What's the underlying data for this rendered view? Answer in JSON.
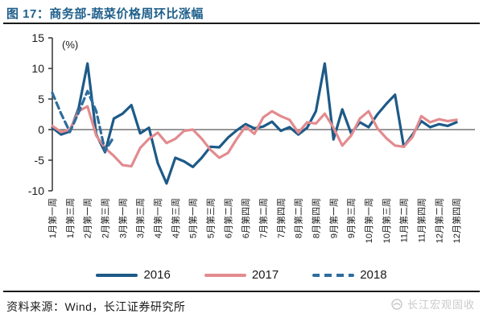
{
  "header": {
    "title": "图 17：商务部-蔬菜价格周环比涨幅",
    "title_color": "#1e5f8b"
  },
  "chart_data": {
    "type": "line",
    "title": "商务部-蔬菜价格周环比涨幅",
    "unit_label": "(%)",
    "ylabel": "(%)",
    "ylim": [
      -10,
      15
    ],
    "yticks": [
      "15",
      "10",
      "5",
      "0",
      "-5",
      "-10"
    ],
    "grid": "zero-line-only",
    "legend_position": "bottom",
    "x_tick_labels": [
      "1月第一周",
      "1月第三周",
      "2月第一周",
      "2月第三周",
      "3月第一周",
      "3月第三周",
      "4月第一周",
      "4月第三周",
      "5月第一周",
      "5月第三周",
      "6月第二周",
      "6月第四周",
      "7月第二周",
      "7月第四周",
      "8月第二周",
      "8月第四周",
      "9月第一周",
      "9月第三周",
      "10月第一周",
      "10月第三周",
      "11月第二周",
      "11月第四周",
      "12月第二周",
      "12月第四周"
    ],
    "weeks_per_tick": 2,
    "series": [
      {
        "name": "2016",
        "color": "#1d5a87",
        "style": "solid",
        "values": [
          0.3,
          -0.8,
          -0.3,
          3.5,
          10.8,
          -0.8,
          -3.7,
          1.8,
          2.6,
          4.0,
          -0.6,
          0.3,
          -5.5,
          -8.8,
          -4.6,
          -5.2,
          -6.1,
          -4.6,
          -2.8,
          -2.9,
          -1.3,
          -0.1,
          0.9,
          0.2,
          0.5,
          1.3,
          -0.2,
          0.4,
          -0.8,
          0.3,
          3.0,
          10.8,
          -1.6,
          3.3,
          -0.6,
          1.2,
          0.4,
          2.5,
          4.2,
          5.7,
          -2.8,
          -0.8,
          1.4,
          0.4,
          0.9,
          0.6,
          1.2
        ]
      },
      {
        "name": "2017",
        "color": "#e28b8f",
        "style": "solid",
        "values": [
          0.6,
          -0.4,
          0.0,
          3.0,
          3.8,
          -1.0,
          -3.0,
          -4.3,
          -5.8,
          -6.0,
          -3.0,
          -1.5,
          -0.5,
          -2.2,
          -1.5,
          -0.2,
          0.0,
          -1.5,
          -3.3,
          -4.6,
          -3.8,
          -1.5,
          0.5,
          -0.7,
          2.0,
          3.0,
          2.2,
          1.6,
          -0.5,
          1.2,
          1.0,
          2.6,
          0.3,
          -2.6,
          -1.0,
          1.8,
          3.0,
          0.2,
          -1.4,
          -2.6,
          -2.8,
          -1.2,
          2.2,
          1.2,
          1.7,
          1.4,
          1.6
        ]
      },
      {
        "name": "2018",
        "color": "#2e6d9d",
        "style": "dashed",
        "values": [
          6.0,
          2.6,
          -0.4,
          2.8,
          6.3,
          3.0,
          -3.5,
          -1.2
        ]
      }
    ]
  },
  "axis_colors": {
    "axis": "#333333",
    "zero_line": "#595959",
    "tick_text": "#1a1a1a"
  },
  "footer": {
    "source": "资料来源：Wind，长江证券研究所",
    "watermark": "长江宏观固收",
    "watermark_color": "#c9c9c9"
  }
}
